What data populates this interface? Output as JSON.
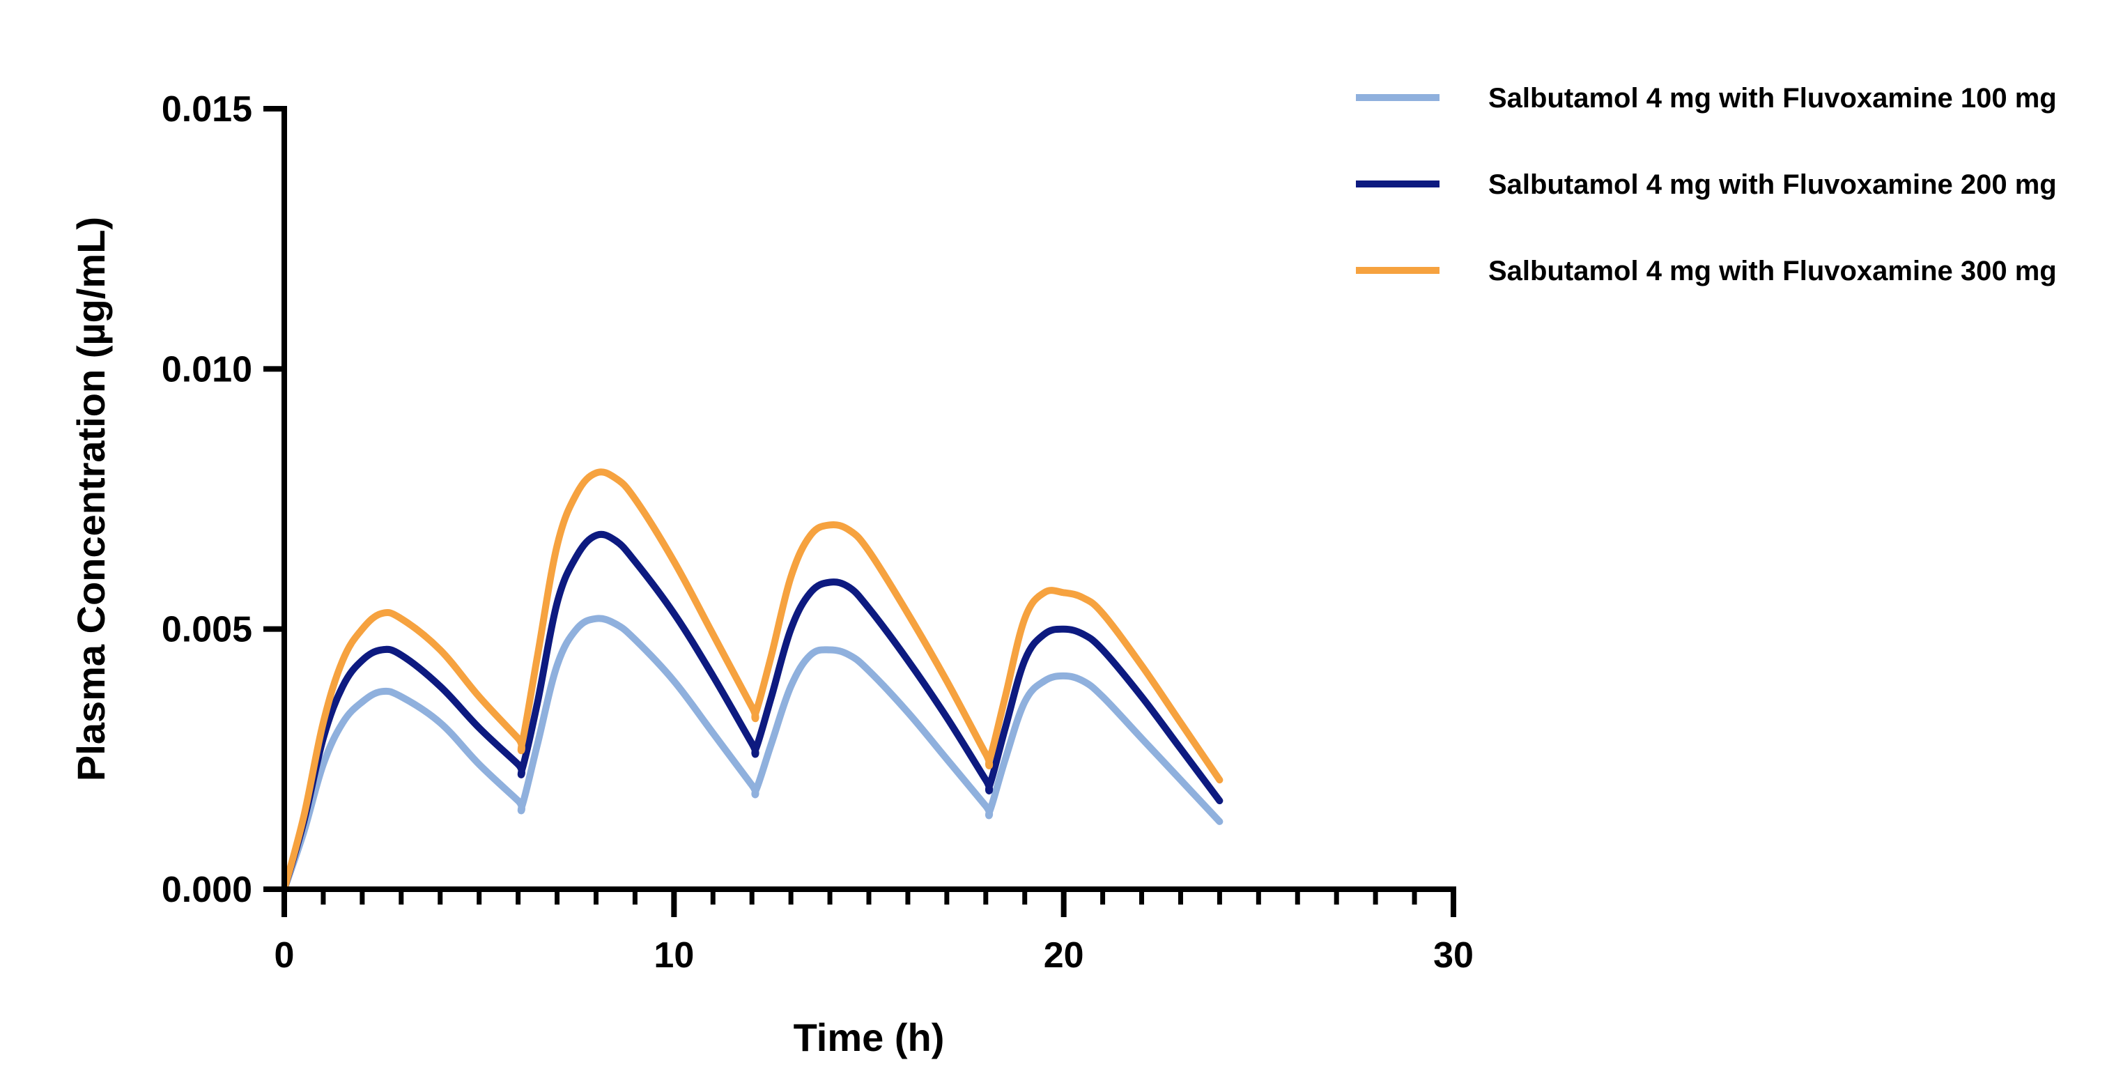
{
  "chart_data": {
    "type": "line",
    "title": "",
    "xlabel": "Time (h)",
    "ylabel": "Plasma Concentration (µg/mL)",
    "xlim": [
      0,
      30
    ],
    "ylim": [
      0,
      0.015
    ],
    "x_ticks": [
      0,
      10,
      20,
      30
    ],
    "x_tick_labels": [
      "0",
      "10",
      "20",
      "30"
    ],
    "y_ticks": [
      0,
      0.005,
      0.01,
      0.015
    ],
    "y_tick_labels": [
      "0.000",
      "0.005",
      "0.010",
      "0.015"
    ],
    "x_minor_step": 1,
    "grid": false,
    "legend_position": "top-right",
    "dose_interval_h": 6,
    "series": [
      {
        "name": "Salbutamol 4 mg with Fluvoxamine 100 mg",
        "color": "#8fb0dd",
        "x": [
          0,
          0.5,
          1,
          1.5,
          2,
          2.5,
          3,
          4,
          5,
          6,
          6.1,
          6.5,
          7,
          7.5,
          8,
          8.5,
          9,
          10,
          11,
          12,
          12.1,
          12.5,
          13,
          13.5,
          14,
          14.5,
          15,
          16,
          17,
          18,
          18.1,
          18.5,
          19,
          19.5,
          20,
          20.5,
          21,
          22,
          23,
          24
        ],
        "y": [
          0,
          0.0011,
          0.0024,
          0.0032,
          0.0036,
          0.0038,
          0.0037,
          0.0032,
          0.0024,
          0.0017,
          0.0016,
          0.0028,
          0.0043,
          0.005,
          0.0052,
          0.0051,
          0.0048,
          0.004,
          0.003,
          0.002,
          0.0019,
          0.0028,
          0.0039,
          0.0045,
          0.0046,
          0.0045,
          0.0042,
          0.0034,
          0.0025,
          0.0016,
          0.0015,
          0.0025,
          0.0036,
          0.004,
          0.0041,
          0.004,
          0.0037,
          0.0029,
          0.0021,
          0.0013
        ]
      },
      {
        "name": "Salbutamol 4 mg with Fluvoxamine 200 mg",
        "color": "#0d1a80",
        "x": [
          0,
          0.5,
          1,
          1.5,
          2,
          2.5,
          3,
          4,
          5,
          6,
          6.1,
          6.5,
          7,
          7.5,
          8,
          8.5,
          9,
          10,
          11,
          12,
          12.1,
          12.5,
          13,
          13.5,
          14,
          14.5,
          15,
          16,
          17,
          18,
          18.1,
          18.5,
          19,
          19.5,
          20,
          20.5,
          21,
          22,
          23,
          24
        ],
        "y": [
          0,
          0.0013,
          0.0029,
          0.0039,
          0.0044,
          0.0046,
          0.0045,
          0.0039,
          0.0031,
          0.0024,
          0.0023,
          0.0036,
          0.0055,
          0.0064,
          0.0068,
          0.0067,
          0.0063,
          0.0053,
          0.0041,
          0.0028,
          0.0027,
          0.0037,
          0.005,
          0.0057,
          0.0059,
          0.0058,
          0.0054,
          0.0044,
          0.0033,
          0.0021,
          0.002,
          0.0031,
          0.0044,
          0.0049,
          0.005,
          0.0049,
          0.0046,
          0.0037,
          0.0027,
          0.0017
        ]
      },
      {
        "name": "Salbutamol 4 mg with Fluvoxamine 300 mg",
        "color": "#f6a23f",
        "x": [
          0,
          0.5,
          1,
          1.5,
          2,
          2.5,
          3,
          4,
          5,
          6,
          6.1,
          6.5,
          7,
          7.5,
          8,
          8.5,
          9,
          10,
          11,
          12,
          12.1,
          12.5,
          13,
          13.5,
          14,
          14.5,
          15,
          16,
          17,
          18,
          18.1,
          18.5,
          19,
          19.5,
          20,
          20.5,
          21,
          22,
          23,
          24
        ],
        "y": [
          0,
          0.0014,
          0.0032,
          0.0044,
          0.005,
          0.0053,
          0.0052,
          0.0046,
          0.0037,
          0.0029,
          0.0028,
          0.0045,
          0.0066,
          0.0076,
          0.008,
          0.0079,
          0.0075,
          0.0063,
          0.0049,
          0.0035,
          0.0034,
          0.0045,
          0.006,
          0.0068,
          0.007,
          0.0069,
          0.0065,
          0.0053,
          0.004,
          0.0026,
          0.0025,
          0.0037,
          0.0052,
          0.0057,
          0.0057,
          0.0056,
          0.0053,
          0.0043,
          0.0032,
          0.0021
        ]
      }
    ]
  }
}
